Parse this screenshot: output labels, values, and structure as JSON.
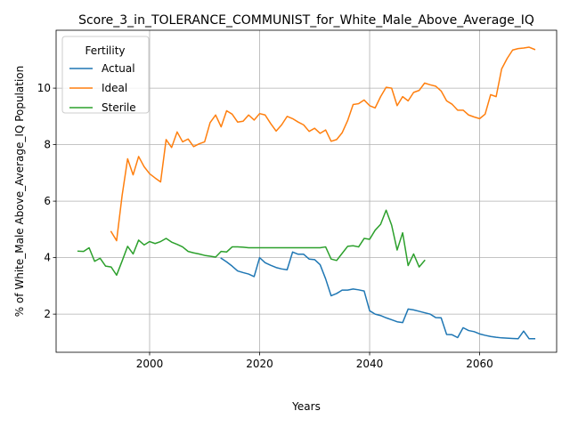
{
  "chart_data": {
    "type": "line",
    "title": "Score_3_in_TOLERANCE_COMMUNIST_for_White_Male_Above_Average_IQ",
    "xlabel": "Years",
    "ylabel": "% of White_Male Above_Average_IQ Population",
    "xlim": [
      1983,
      2074
    ],
    "ylim": [
      0.65,
      12.05
    ],
    "xticks": [
      2000,
      2020,
      2040,
      2060
    ],
    "yticks": [
      2,
      4,
      6,
      8,
      10
    ],
    "grid": true,
    "legend": {
      "title": "Fertility",
      "placement": "top-left"
    },
    "series": [
      {
        "name": "Actual",
        "color": "#1f77b4",
        "x": [
          2013,
          2014,
          2015,
          2016,
          2017,
          2018,
          2019,
          2020,
          2021,
          2022,
          2023,
          2024,
          2025,
          2026,
          2027,
          2028,
          2029,
          2030,
          2031,
          2032,
          2033,
          2034,
          2035,
          2036,
          2037,
          2038,
          2039,
          2040,
          2041,
          2042,
          2043,
          2044,
          2045,
          2046,
          2047,
          2048,
          2049,
          2050,
          2051,
          2052,
          2053,
          2054,
          2055,
          2056,
          2057,
          2058,
          2059,
          2060,
          2061,
          2062,
          2063,
          2064,
          2065,
          2066,
          2067,
          2068,
          2069,
          2070
        ],
        "y": [
          3.98,
          3.85,
          3.7,
          3.53,
          3.47,
          3.42,
          3.33,
          4.0,
          3.82,
          3.73,
          3.65,
          3.6,
          3.57,
          4.2,
          4.12,
          4.12,
          3.95,
          3.93,
          3.75,
          3.25,
          2.65,
          2.73,
          2.85,
          2.85,
          2.89,
          2.86,
          2.82,
          2.12,
          2.0,
          1.95,
          1.87,
          1.8,
          1.73,
          1.7,
          2.18,
          2.15,
          2.1,
          2.05,
          2.0,
          1.88,
          1.87,
          1.28,
          1.27,
          1.17,
          1.52,
          1.42,
          1.38,
          1.3,
          1.25,
          1.21,
          1.18,
          1.16,
          1.15,
          1.14,
          1.13,
          1.4,
          1.13,
          1.13
        ]
      },
      {
        "name": "Ideal",
        "color": "#ff7f0e",
        "x": [
          1993,
          1994,
          1995,
          1996,
          1997,
          1998,
          1999,
          2000,
          2001,
          2002,
          2003,
          2004,
          2005,
          2006,
          2007,
          2008,
          2009,
          2010,
          2011,
          2012,
          2013,
          2014,
          2015,
          2016,
          2017,
          2018,
          2019,
          2020,
          2021,
          2022,
          2023,
          2024,
          2025,
          2026,
          2027,
          2028,
          2029,
          2030,
          2031,
          2032,
          2033,
          2034,
          2035,
          2036,
          2037,
          2038,
          2039,
          2040,
          2041,
          2042,
          2043,
          2044,
          2045,
          2046,
          2047,
          2048,
          2049,
          2050,
          2051,
          2052,
          2053,
          2054,
          2055,
          2056,
          2057,
          2058,
          2059,
          2060,
          2061,
          2062,
          2063,
          2064,
          2065,
          2066,
          2067,
          2068,
          2069,
          2070
        ],
        "y": [
          4.92,
          4.6,
          6.2,
          7.5,
          6.93,
          7.58,
          7.22,
          6.97,
          6.82,
          6.68,
          8.18,
          7.9,
          8.45,
          8.1,
          8.2,
          7.93,
          8.03,
          8.1,
          8.78,
          9.05,
          8.63,
          9.2,
          9.08,
          8.8,
          8.83,
          9.05,
          8.87,
          9.1,
          9.05,
          8.75,
          8.48,
          8.7,
          9.0,
          8.92,
          8.8,
          8.7,
          8.47,
          8.58,
          8.4,
          8.52,
          8.12,
          8.18,
          8.42,
          8.85,
          9.42,
          9.45,
          9.58,
          9.38,
          9.3,
          9.7,
          10.03,
          10.0,
          9.38,
          9.7,
          9.55,
          9.85,
          9.92,
          10.18,
          10.12,
          10.07,
          9.9,
          9.55,
          9.43,
          9.22,
          9.22,
          9.05,
          8.98,
          8.92,
          9.08,
          9.77,
          9.7,
          10.68,
          11.05,
          11.35,
          11.4,
          11.42,
          11.45,
          11.37
        ]
      },
      {
        "name": "Sterile",
        "color": "#2ca02c",
        "x": [
          1987,
          1988,
          1989,
          1990,
          1991,
          1992,
          1993,
          1994,
          1995,
          1996,
          1997,
          1998,
          1999,
          2000,
          2001,
          2002,
          2003,
          2004,
          2005,
          2006,
          2007,
          2008,
          2009,
          2010,
          2011,
          2012,
          2013,
          2014,
          2015,
          2016,
          2017,
          2018,
          2019,
          2020,
          2021,
          2022,
          2023,
          2024,
          2025,
          2026,
          2027,
          2028,
          2029,
          2030,
          2031,
          2032,
          2033,
          2034,
          2035,
          2036,
          2037,
          2038,
          2039,
          2040,
          2041,
          2042,
          2043,
          2044,
          2045,
          2046,
          2047,
          2048,
          2049,
          2050
        ],
        "y": [
          4.23,
          4.22,
          4.35,
          3.87,
          3.98,
          3.7,
          3.67,
          3.38,
          3.88,
          4.4,
          4.13,
          4.62,
          4.45,
          4.57,
          4.5,
          4.57,
          4.68,
          4.55,
          4.47,
          4.38,
          4.22,
          4.17,
          4.13,
          4.08,
          4.05,
          4.02,
          4.22,
          4.2,
          4.38,
          4.38,
          4.37,
          4.35,
          4.35,
          4.35,
          4.35,
          4.35,
          4.35,
          4.35,
          4.35,
          4.35,
          4.35,
          4.35,
          4.35,
          4.35,
          4.35,
          4.38,
          3.95,
          3.9,
          4.15,
          4.4,
          4.42,
          4.38,
          4.68,
          4.65,
          4.97,
          5.18,
          5.68,
          5.15,
          4.27,
          4.88,
          3.72,
          4.13,
          3.67,
          3.9
        ]
      }
    ]
  }
}
